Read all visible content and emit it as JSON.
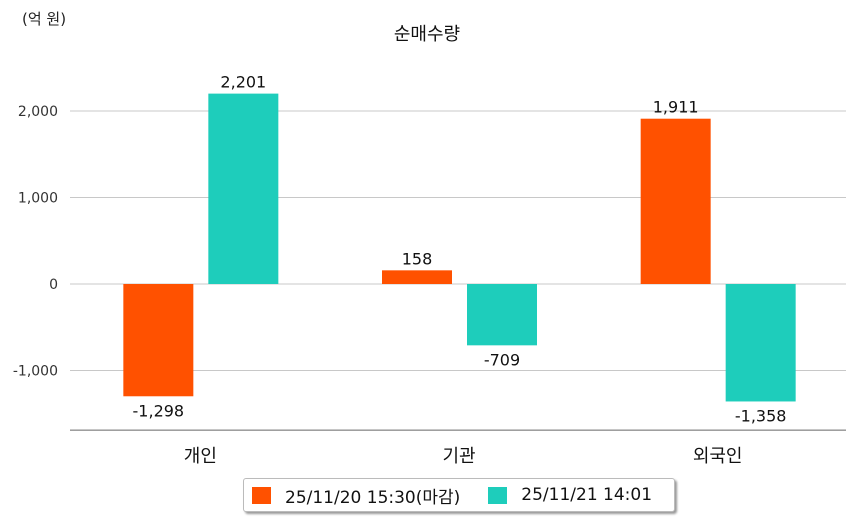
{
  "chart_data": {
    "type": "bar",
    "title": "순매수량",
    "unit_label": "(억 원)",
    "categories": [
      "개인",
      "기관",
      "외국인"
    ],
    "series": [
      {
        "name": "25/11/20 15:30(마감)",
        "color": "#ff5100",
        "values": [
          -1298,
          158,
          1911
        ],
        "labels": [
          "-1,298",
          "158",
          "1,911"
        ]
      },
      {
        "name": "25/11/21 14:01",
        "color": "#1ecdbb",
        "values": [
          2201,
          -709,
          -1358
        ],
        "labels": [
          "2,201",
          "-709",
          "-1,358"
        ]
      }
    ],
    "yticks": [
      -1000,
      0,
      1000,
      2000
    ],
    "ytick_labels": [
      "-1,000",
      "0",
      "1,000",
      "2,000"
    ],
    "ylim": [
      -1690,
      2600
    ],
    "grid": true,
    "legend_position": "bottom"
  }
}
